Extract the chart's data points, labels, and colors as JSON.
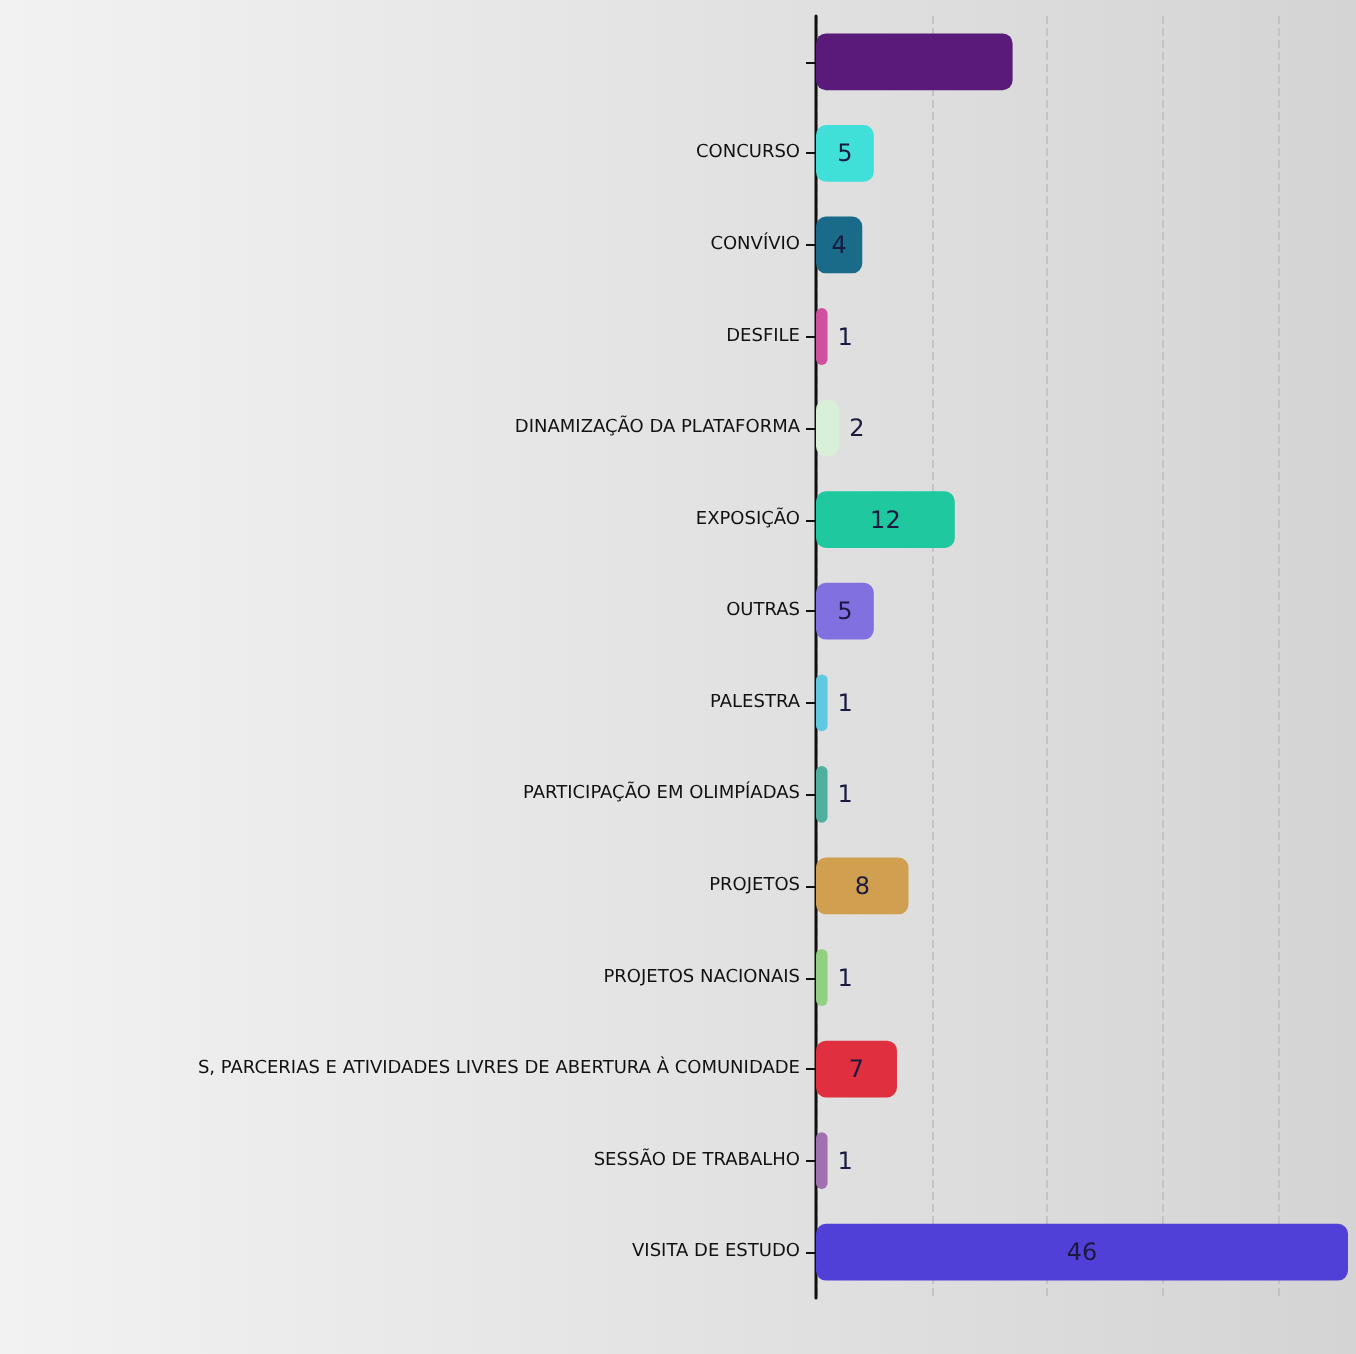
{
  "chart_data": {
    "type": "bar",
    "orientation": "horizontal",
    "categories": [
      null,
      "CONCURSO",
      "CONVÍVIO",
      "DESFILE",
      "DINAMIZAÇÃO DA PLATAFORMA",
      "EXPOSIÇÃO",
      "OUTRAS",
      "PALESTRA",
      "PARTICIPAÇÃO EM OLIMPÍADAS",
      "PROJETOS",
      "PROJETOS NACIONAIS",
      "S, PARCERIAS E ATIVIDADES LIVRES DE ABERTURA À COMUNIDADE",
      "SESSÃO DE TRABALHO",
      "VISITA DE ESTUDO"
    ],
    "values": [
      17,
      5,
      4,
      1,
      2,
      12,
      5,
      1,
      1,
      8,
      1,
      7,
      1,
      46
    ],
    "value_labels": [
      null,
      "5",
      "4",
      "1",
      "2",
      "12",
      "5",
      "1",
      "1",
      "8",
      "1",
      "7",
      "1",
      "46"
    ],
    "colors": [
      "#5a1a7a",
      "#40e0d8",
      "#1a6a8a",
      "#d050a0",
      "#d8f0d8",
      "#20c8a0",
      "#8070e0",
      "#60c8e0",
      "#50b0a0",
      "#d0a050",
      "#90d080",
      "#e03040",
      "#a070b0",
      "#5040d8"
    ],
    "xlim": [
      0,
      46
    ],
    "xticks": [
      {
        "value": 0,
        "label": null
      },
      {
        "value": 10,
        "label": null
      },
      {
        "value": 20,
        "label": null
      },
      {
        "value": 30,
        "label": null
      },
      {
        "value": 40,
        "label": null
      }
    ],
    "grid": "x",
    "tick_labels": "y"
  }
}
